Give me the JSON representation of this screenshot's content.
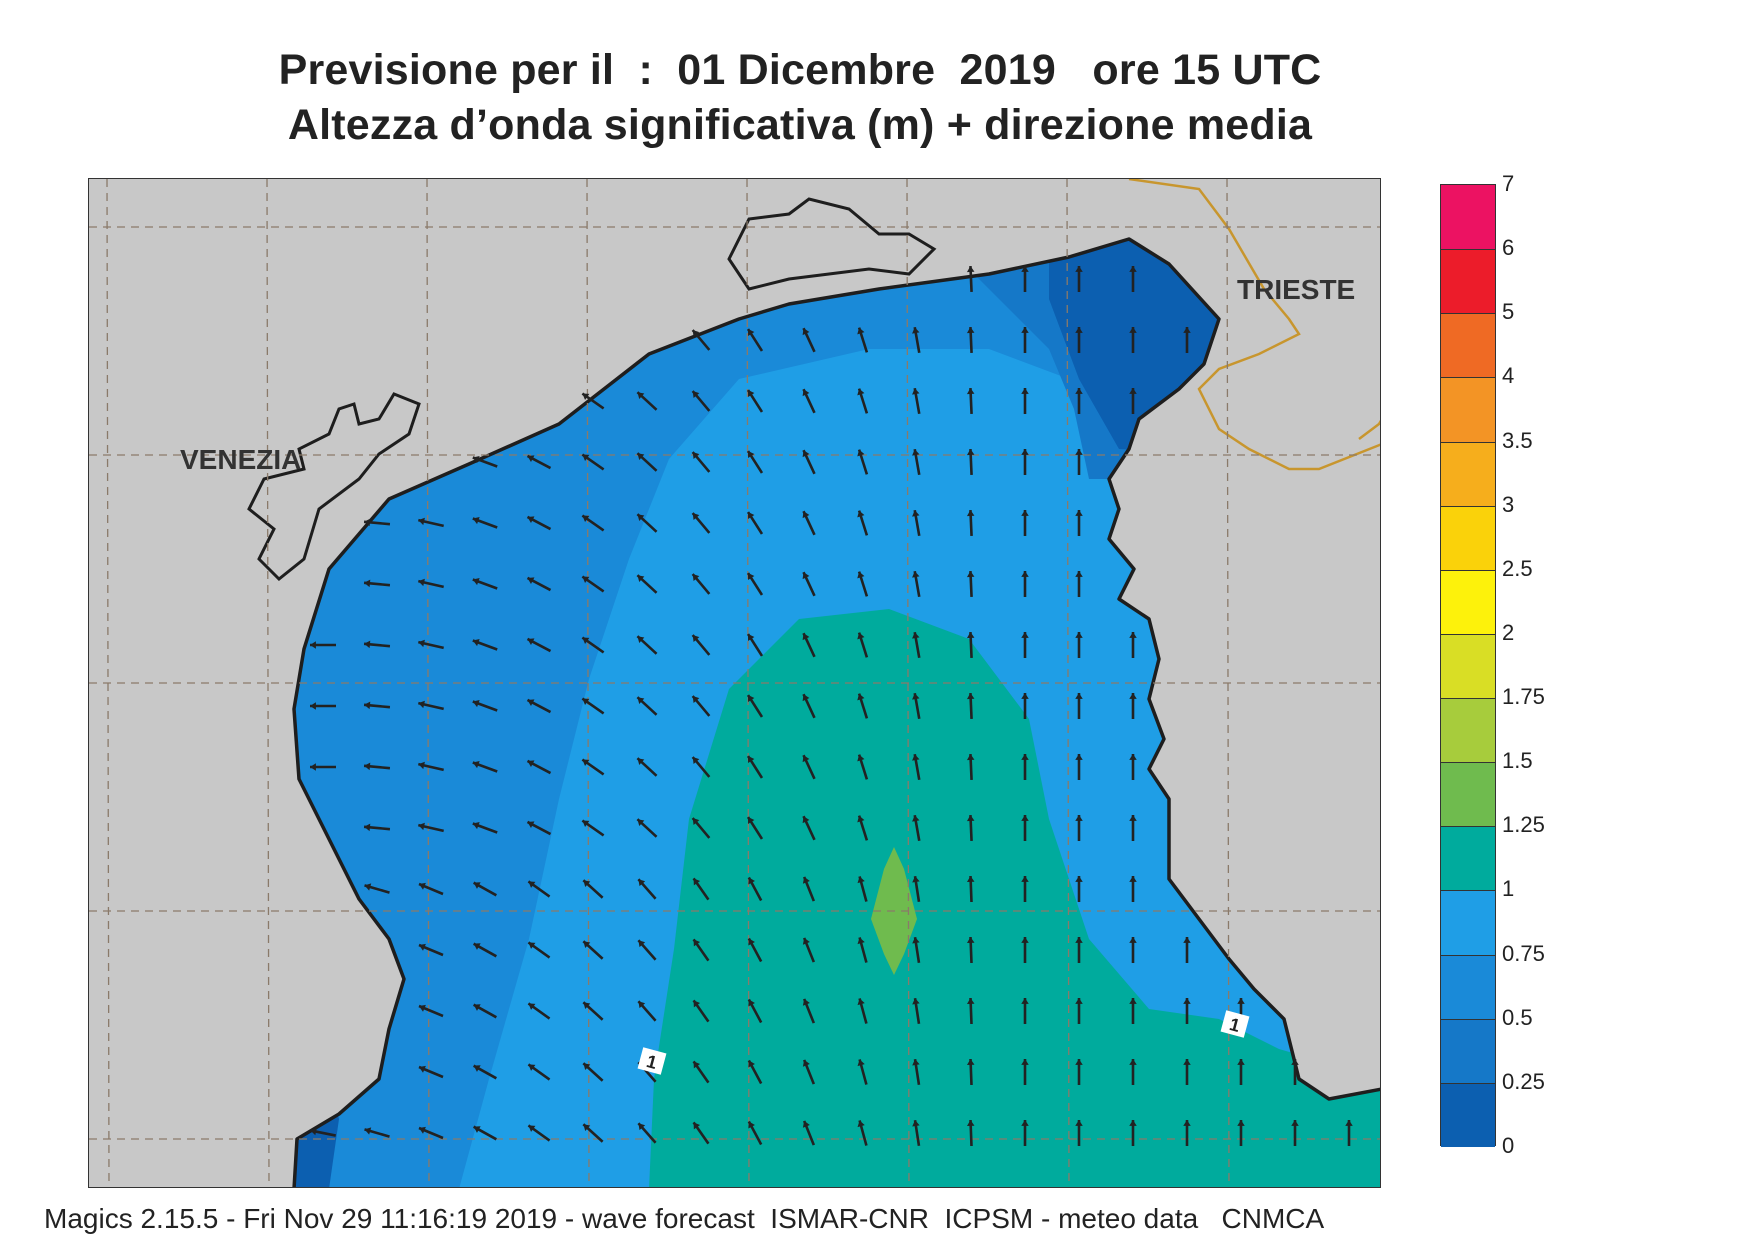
{
  "title": {
    "line1": "Previsione per il  :  01 Dicembre  2019   ore 15 UTC",
    "line2": "Altezza d’onda significativa (m) + direzione media"
  },
  "map": {
    "cities": [
      {
        "name": "VENEZIA"
      },
      {
        "name": "TRIESTE"
      }
    ],
    "contour_labels": [
      "1",
      "1"
    ],
    "colors": {
      "land": "#c8c8c8",
      "coast": "#1e1e1e",
      "border": "#c8962e",
      "grid": "#8a7a6a",
      "arrow": "#222222",
      "band_0_025": "#0c5fb0",
      "band_025_05": "#1578c8",
      "band_05_075": "#1a8ad8",
      "band_075_1": "#1f9ee6",
      "band_1_125": "#00ab9d",
      "band_125_15": "#6fbb4e"
    }
  },
  "colorbar": {
    "labels": [
      "7",
      "6",
      "5",
      "4",
      "3.5",
      "3",
      "2.5",
      "2",
      "1.75",
      "1.5",
      "1.25",
      "1",
      "0.75",
      "0.5",
      "0.25",
      "0"
    ],
    "colors": [
      "#ec1262",
      "#ec1c2a",
      "#ef6a24",
      "#f39425",
      "#f6ae1c",
      "#fad20a",
      "#fdf20b",
      "#d9de25",
      "#a7cc3c",
      "#6fbb4e",
      "#00ab9d",
      "#1f9ee6",
      "#1a8ad8",
      "#1578c8",
      "#0c5fb0"
    ]
  },
  "footer": "Magics 2.15.5 - Fri Nov 29 11:16:19 2019 - wave forecast  ISMAR-CNR  ICPSM - meteo data   CNMCA"
}
